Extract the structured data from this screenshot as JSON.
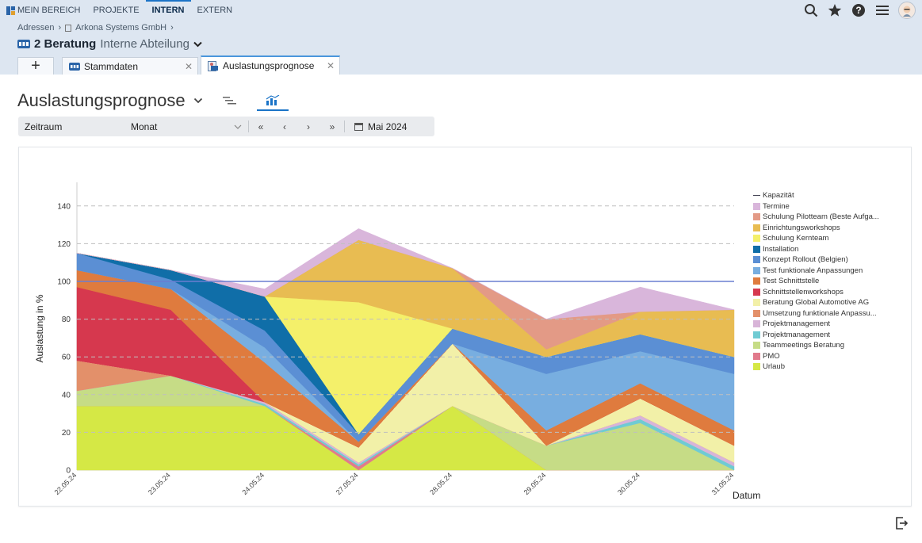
{
  "nav": {
    "items": [
      "MEIN BEREICH",
      "PROJEKTE",
      "INTERN",
      "EXTERN"
    ],
    "active_index": 2
  },
  "header_icons": [
    "search-icon",
    "star-icon",
    "help-icon",
    "menu-icon",
    "user-avatar"
  ],
  "breadcrumb": {
    "items": [
      "Adressen",
      "Arkona Systems GmbH"
    ]
  },
  "record": {
    "title": "2 Beratung",
    "subtitle": "Interne Abteilung"
  },
  "tabs": [
    {
      "label": "Stammdaten",
      "active": false
    },
    {
      "label": "Auslastungsprognose",
      "active": true
    }
  ],
  "page": {
    "title": "Auslastungsprognose"
  },
  "filter": {
    "period_label": "Zeitraum",
    "period_value": "Monat",
    "date_value": "Mai 2024"
  },
  "colors": {
    "accent": "#1a73c7",
    "header_bg": "#dde6f1"
  },
  "chart_data": {
    "type": "area",
    "stacked": true,
    "xlabel": "Datum",
    "ylabel": "Auslastung in %",
    "ylim": [
      0,
      150
    ],
    "yticks": [
      0,
      20,
      40,
      60,
      80,
      100,
      120,
      140
    ],
    "grid": "horizontal dashed",
    "legend_position": "right",
    "x": [
      "22.05.24",
      "23.05.24",
      "24.05.24",
      "27.05.24",
      "28.05.24",
      "29.05.24",
      "30.05.24",
      "31.05.24"
    ],
    "capacity": {
      "name": "Kapazität",
      "value": 100,
      "color": "#6a7fd0"
    },
    "series": [
      {
        "name": "Urlaub",
        "color": "#d5e845",
        "values": [
          34,
          34,
          34,
          0,
          34,
          0,
          0,
          0
        ]
      },
      {
        "name": "PMO",
        "color": "#e17a8c",
        "values": [
          0,
          0,
          0,
          2,
          0,
          0,
          0,
          0
        ]
      },
      {
        "name": "Teammeetings Beratung",
        "color": "#c6dc86",
        "values": [
          8,
          16,
          0,
          0,
          0,
          13,
          25,
          0
        ]
      },
      {
        "name": "Projektmanagement",
        "color": "#6fcbd3",
        "values": [
          0,
          0,
          1,
          1,
          0,
          0,
          2,
          2
        ]
      },
      {
        "name": "Projektmanagement",
        "color": "#d8b4d8",
        "values": [
          0,
          0,
          1,
          1,
          0,
          0,
          2,
          2
        ]
      },
      {
        "name": "Umsetzung funktionale Anpassu...",
        "color": "#e3906a",
        "values": [
          16,
          0,
          0,
          0,
          0,
          0,
          0,
          0
        ]
      },
      {
        "name": "Beratung Global Automotive AG",
        "color": "#f2f0a8",
        "values": [
          0,
          0,
          0,
          8,
          33,
          0,
          9,
          9
        ]
      },
      {
        "name": "Schnittstellenworkshops",
        "color": "#d6384e",
        "values": [
          39,
          35,
          0,
          0,
          0,
          0,
          0,
          0
        ]
      },
      {
        "name": "Test Schnittstelle",
        "color": "#df7b3e",
        "values": [
          9,
          11,
          21,
          3,
          0,
          8,
          8,
          8
        ]
      },
      {
        "name": "Test funktionale Anpassungen",
        "color": "#78aee0",
        "values": [
          0,
          0,
          8,
          0,
          0,
          30,
          17,
          30
        ]
      },
      {
        "name": "Konzept Rollout (Belgien)",
        "color": "#5b8fd4",
        "values": [
          9,
          5,
          9,
          4,
          8,
          9,
          9,
          9
        ]
      },
      {
        "name": "Installation",
        "color": "#106ea8",
        "values": [
          0,
          5,
          18,
          0,
          0,
          0,
          0,
          0
        ]
      },
      {
        "name": "Schulung Kernteam",
        "color": "#f4f06a",
        "values": [
          0,
          0,
          0,
          70,
          0,
          0,
          0,
          0
        ]
      },
      {
        "name": "Einrichtungsworkshops",
        "color": "#e8bc52",
        "values": [
          0,
          0,
          0,
          33,
          32,
          4,
          12,
          25
        ]
      },
      {
        "name": "Schulung Pilotteam (Beste Aufga...",
        "color": "#e39a86",
        "values": [
          0,
          0,
          0,
          0,
          0,
          16,
          0,
          0
        ]
      },
      {
        "name": "Termine",
        "color": "#d9b6db",
        "values": [
          0,
          0,
          4,
          6,
          0,
          0,
          13,
          0
        ]
      }
    ]
  }
}
